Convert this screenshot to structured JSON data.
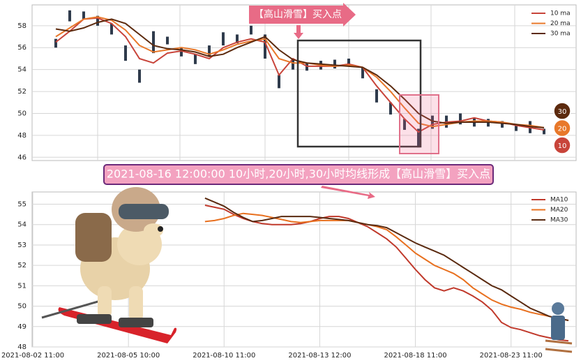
{
  "chart_data": [
    {
      "type": "candlestick-ma",
      "annotation": "【高山滑雪】买入点",
      "ylim": [
        45.7,
        59.9
      ],
      "yticks": [
        46,
        48,
        50,
        52,
        54,
        56,
        58
      ],
      "grid": true,
      "candle_color": "#2f3b4c",
      "low": [
        56.0,
        58.4,
        58.6,
        58.0,
        57.2,
        54.8,
        52.8,
        55.5,
        56.3,
        55.2,
        54.5,
        55.2,
        56.2,
        56.4,
        57.2,
        55.0,
        52.3,
        54.0,
        53.9,
        54.0,
        54.1,
        54.3,
        53.2,
        51.0,
        49.9,
        48.5,
        46.9,
        48.6,
        48.7,
        49.0,
        48.8,
        48.8,
        48.7,
        48.4,
        48.2,
        48.1
      ],
      "high": [
        56.8,
        59.4,
        59.3,
        58.9,
        58.2,
        56.2,
        54.0,
        57.5,
        57.0,
        56.0,
        55.4,
        56.2,
        57.4,
        57.2,
        58.0,
        57.2,
        53.5,
        55.0,
        54.6,
        54.8,
        54.9,
        55.0,
        54.2,
        52.2,
        51.0,
        49.5,
        48.6,
        49.8,
        49.8,
        50.0,
        49.6,
        49.5,
        49.3,
        49.0,
        49.3,
        48.6
      ],
      "series": [
        {
          "name": "10 ma",
          "color": "#c8443a",
          "values": [
            56.5,
            57.5,
            58.6,
            58.7,
            58.2,
            57.0,
            55.0,
            54.6,
            55.5,
            55.7,
            55.4,
            55.0,
            56.0,
            56.5,
            56.8,
            56.5,
            53.5,
            55.0,
            54.3,
            54.3,
            54.3,
            54.5,
            54.2,
            52.5,
            51.0,
            49.5,
            48.3,
            49.0,
            49.2,
            49.3,
            49.6,
            49.3,
            49.2,
            48.9,
            48.7,
            48.5
          ]
        },
        {
          "name": "20 ma",
          "color": "#e8782a",
          "values": [
            57.0,
            57.8,
            58.6,
            58.8,
            58.5,
            57.6,
            56.2,
            55.6,
            55.8,
            56.0,
            55.8,
            55.4,
            55.8,
            56.3,
            56.6,
            56.8,
            55.0,
            54.6,
            54.6,
            54.4,
            54.3,
            54.4,
            54.2,
            53.3,
            52.0,
            50.5,
            49.1,
            48.8,
            49.0,
            49.2,
            49.3,
            49.3,
            49.2,
            49.0,
            48.9,
            48.7
          ]
        },
        {
          "name": "30 ma",
          "color": "#5c2a0e",
          "values": [
            57.7,
            57.5,
            57.8,
            58.3,
            58.6,
            58.2,
            57.2,
            56.2,
            55.9,
            55.8,
            55.6,
            55.2,
            55.4,
            56.0,
            56.5,
            57.0,
            55.8,
            54.9,
            54.6,
            54.5,
            54.4,
            54.3,
            54.2,
            53.5,
            52.5,
            51.3,
            50.0,
            49.3,
            49.1,
            49.2,
            49.2,
            49.2,
            49.1,
            49.0,
            48.8,
            48.7
          ]
        }
      ],
      "badges": [
        30,
        20,
        10
      ]
    },
    {
      "type": "line",
      "annotation": "2021-08-16 12:00:00 10小时,20小时,30小时均线形成【高山滑雪】买入点",
      "ylim": [
        48,
        55.6
      ],
      "yticks": [
        48,
        49,
        50,
        51,
        52,
        53,
        54,
        55
      ],
      "grid": true,
      "categories": [
        "2021-08-02 11:00",
        null,
        null,
        null,
        null,
        null,
        null,
        null,
        null,
        null,
        "2021-08-05 10:00",
        null,
        null,
        null,
        null,
        null,
        null,
        null,
        null,
        null,
        "2021-08-10 11:00",
        null,
        null,
        null,
        null,
        null,
        null,
        null,
        null,
        null,
        "2021-08-13 12:00",
        null,
        null,
        null,
        null,
        null,
        null,
        null,
        null,
        null,
        "2021-08-18 11:00",
        null,
        null,
        null,
        null,
        null,
        null,
        null,
        null,
        null,
        "2021-08-23 11:00",
        null,
        null,
        null,
        null,
        null,
        null
      ],
      "series": [
        {
          "name": "MA10",
          "color": "#c0392b",
          "values": [
            null,
            null,
            null,
            null,
            null,
            null,
            null,
            null,
            null,
            null,
            null,
            null,
            null,
            null,
            null,
            null,
            null,
            null,
            54.95,
            54.85,
            54.75,
            54.5,
            54.3,
            54.15,
            54.05,
            54.0,
            54.0,
            54.0,
            54.05,
            54.15,
            54.3,
            54.4,
            54.4,
            54.3,
            54.1,
            53.9,
            53.6,
            53.3,
            52.9,
            52.35,
            51.8,
            51.3,
            50.9,
            50.75,
            50.9,
            50.75,
            50.5,
            50.2,
            49.8,
            49.2,
            48.95,
            48.85,
            48.7,
            48.55,
            48.45,
            48.35,
            48.3
          ]
        },
        {
          "name": "MA20",
          "color": "#e8701f",
          "values": [
            null,
            null,
            null,
            null,
            null,
            null,
            null,
            null,
            null,
            null,
            null,
            null,
            null,
            null,
            null,
            null,
            null,
            null,
            54.15,
            54.2,
            54.3,
            54.45,
            54.55,
            54.5,
            54.45,
            54.35,
            54.25,
            54.15,
            54.1,
            54.15,
            54.2,
            54.2,
            54.2,
            54.2,
            54.1,
            54.0,
            53.9,
            53.75,
            53.4,
            53.0,
            52.6,
            52.3,
            52.0,
            51.8,
            51.6,
            51.3,
            50.9,
            50.6,
            50.3,
            50.1,
            49.95,
            49.85,
            49.7,
            49.6,
            49.5,
            49.4,
            49.3
          ]
        },
        {
          "name": "MA30",
          "color": "#5a2a10",
          "values": [
            null,
            null,
            null,
            null,
            null,
            null,
            null,
            null,
            null,
            null,
            null,
            null,
            null,
            null,
            null,
            null,
            null,
            null,
            55.3,
            55.1,
            54.9,
            54.6,
            54.35,
            54.15,
            54.2,
            54.3,
            54.4,
            54.4,
            54.4,
            54.4,
            54.35,
            54.3,
            54.25,
            54.2,
            54.1,
            54.0,
            53.95,
            53.85,
            53.6,
            53.35,
            53.1,
            52.9,
            52.7,
            52.5,
            52.2,
            51.9,
            51.6,
            51.3,
            51.0,
            50.8,
            50.5,
            50.2,
            49.9,
            49.7,
            49.5,
            49.4,
            49.3
          ]
        }
      ]
    }
  ]
}
